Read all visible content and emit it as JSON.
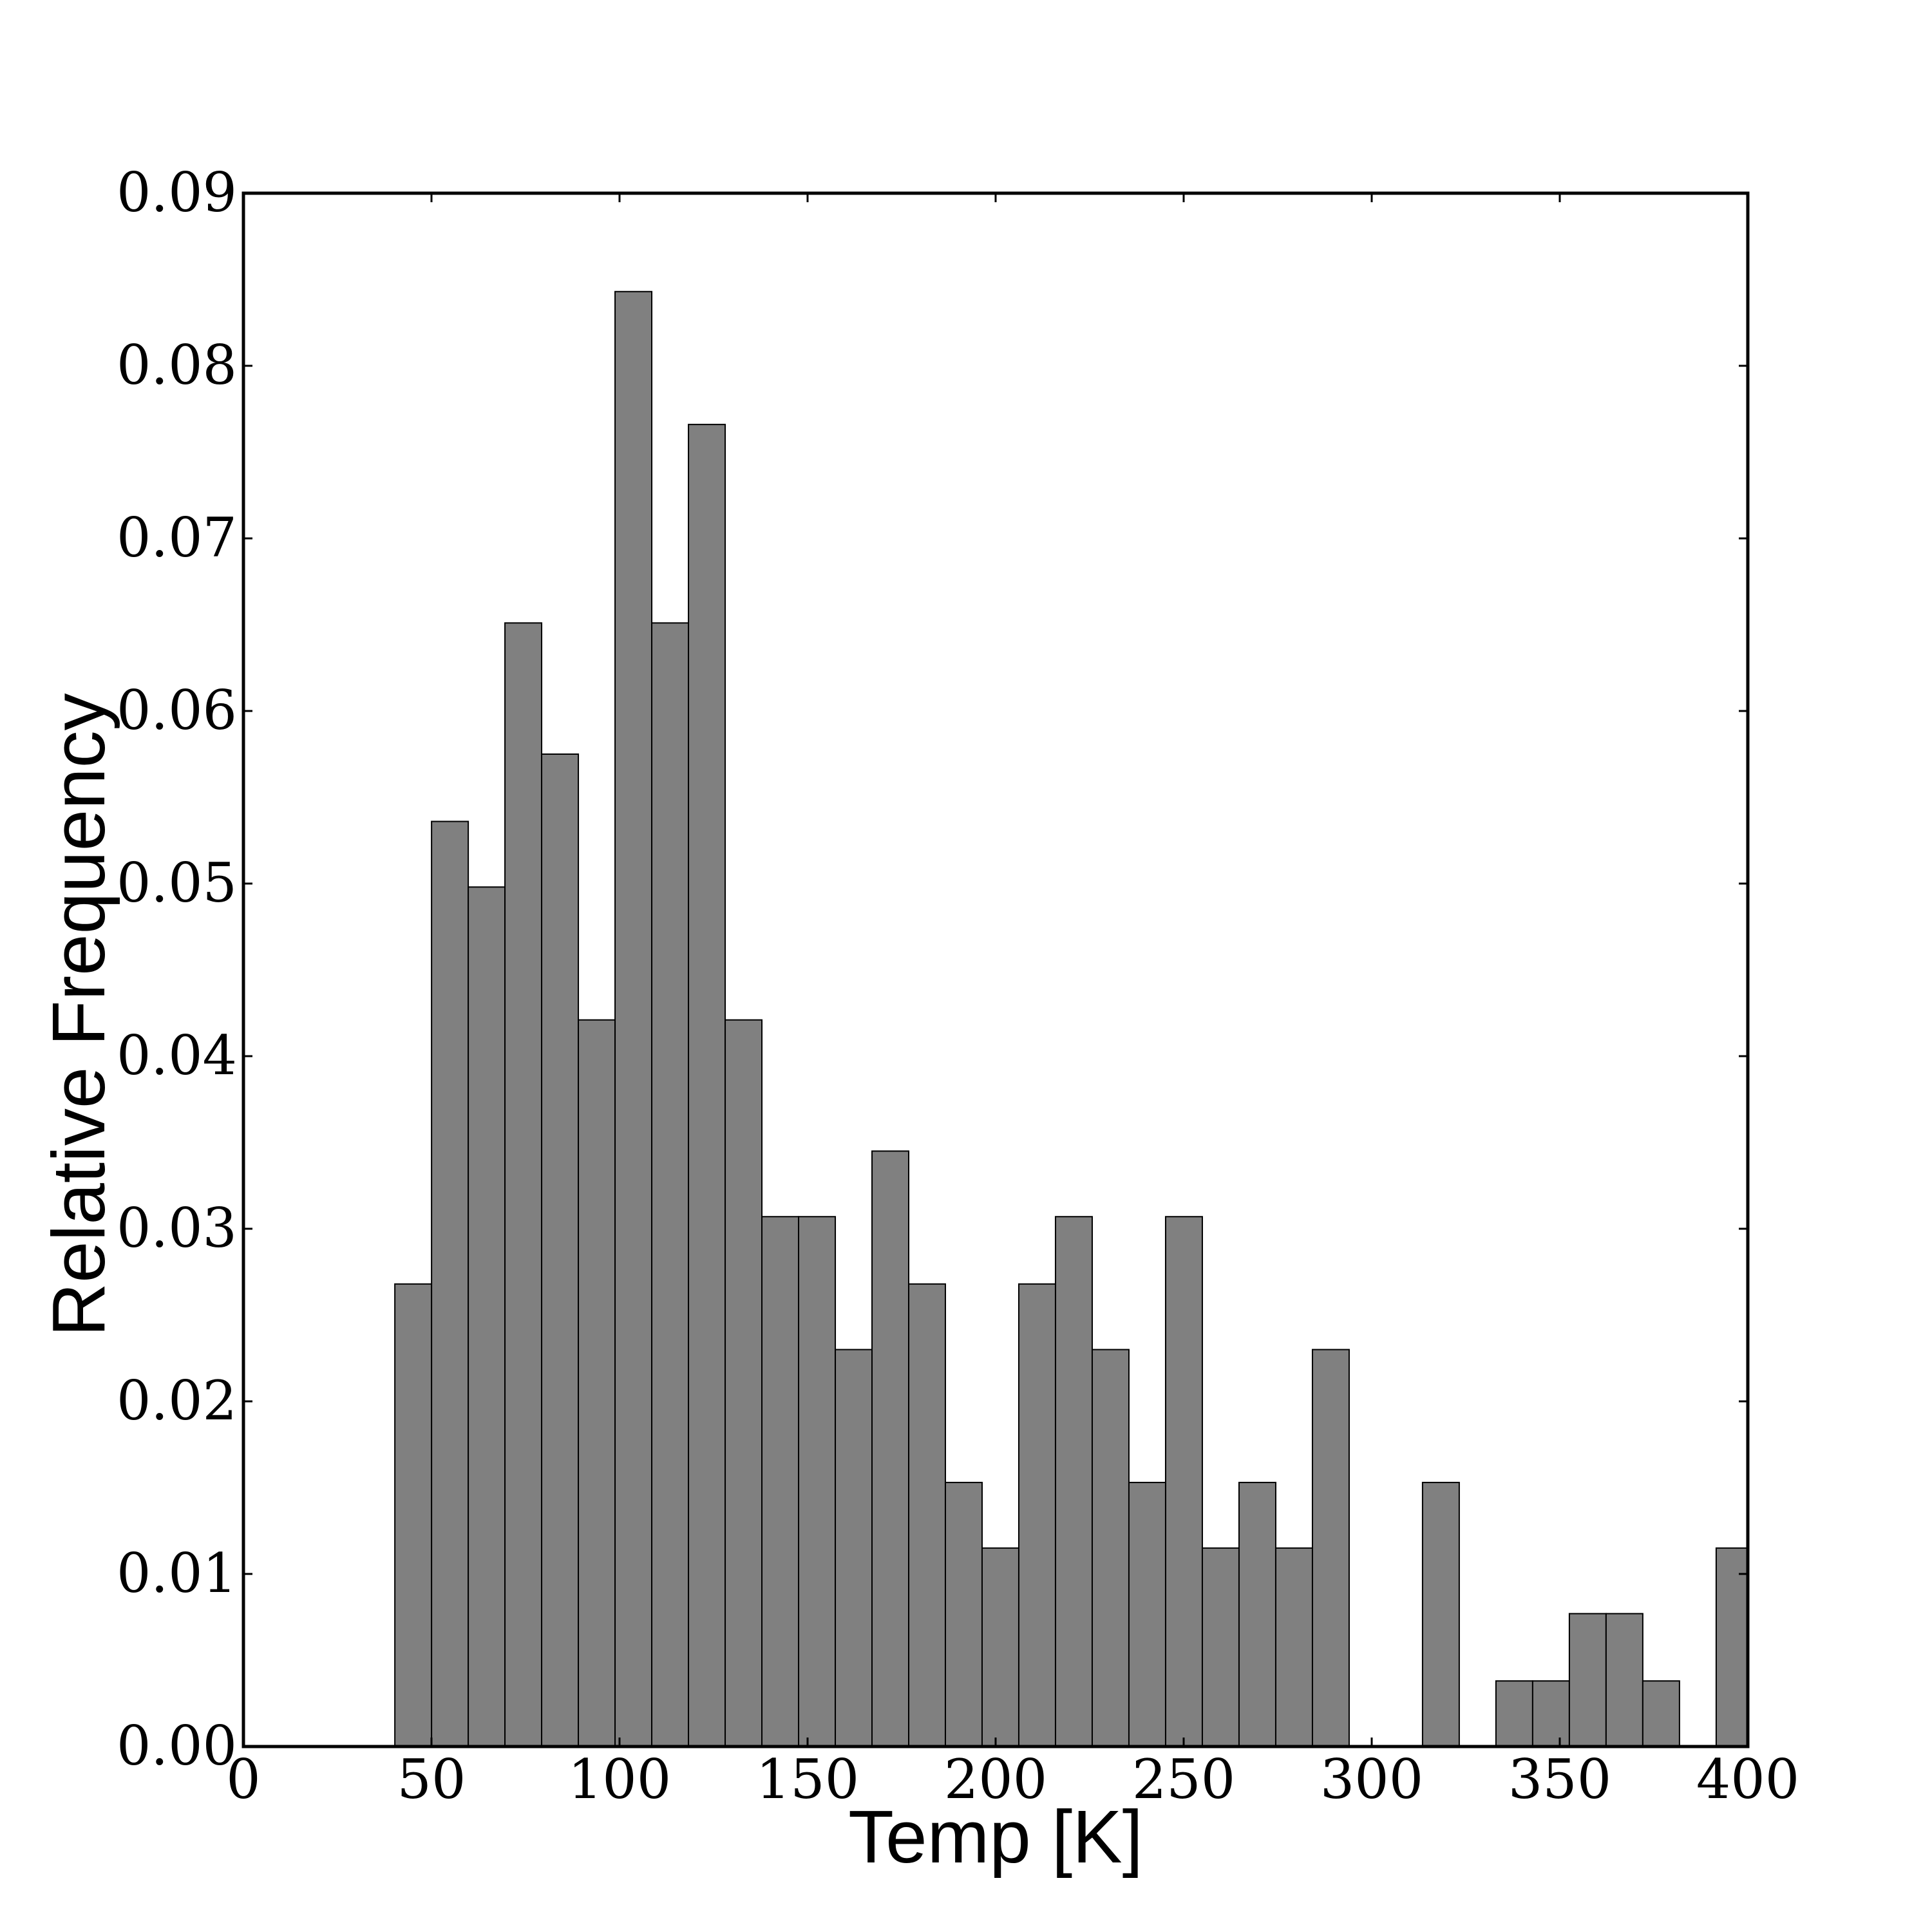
{
  "chart_data": {
    "type": "bar",
    "title": "",
    "xlabel": "Temp [K]",
    "ylabel": "Relative Frequency",
    "xlim": [
      0,
      400
    ],
    "ylim": [
      0,
      0.09
    ],
    "x_ticks": [
      "0",
      "50",
      "100",
      "150",
      "200",
      "250",
      "300",
      "350",
      "400"
    ],
    "y_ticks": [
      "0.00",
      "0.01",
      "0.02",
      "0.03",
      "0.04",
      "0.05",
      "0.06",
      "0.07",
      "0.08",
      "0.09"
    ],
    "grid": false,
    "bar_color": "#808080",
    "bar_edge_color": "#000000",
    "bin_edges": [
      40.26,
      50.02,
      59.78,
      69.53,
      79.29,
      89.05,
      98.81,
      108.57,
      118.33,
      128.09,
      137.85,
      147.61,
      157.37,
      167.13,
      176.89,
      186.64,
      196.4,
      206.16,
      215.92,
      225.68,
      235.44,
      245.2,
      254.96,
      264.72,
      274.48,
      284.24,
      294.0,
      303.75,
      313.51,
      323.27,
      333.03,
      342.79,
      352.55,
      362.31,
      372.07,
      381.83,
      391.59,
      401.35
    ],
    "values": [
      0.0268,
      0.0536,
      0.0498,
      0.0651,
      0.0575,
      0.0421,
      0.0843,
      0.0651,
      0.0766,
      0.0421,
      0.0307,
      0.0307,
      0.023,
      0.0345,
      0.0268,
      0.0153,
      0.0115,
      0.0268,
      0.0307,
      0.023,
      0.0153,
      0.0307,
      0.0115,
      0.0153,
      0.0115,
      0.023,
      0.0,
      0.0,
      0.0153,
      0.0,
      0.0038,
      0.0038,
      0.0077,
      0.0077,
      0.0038,
      0.0,
      0.0115
    ]
  }
}
